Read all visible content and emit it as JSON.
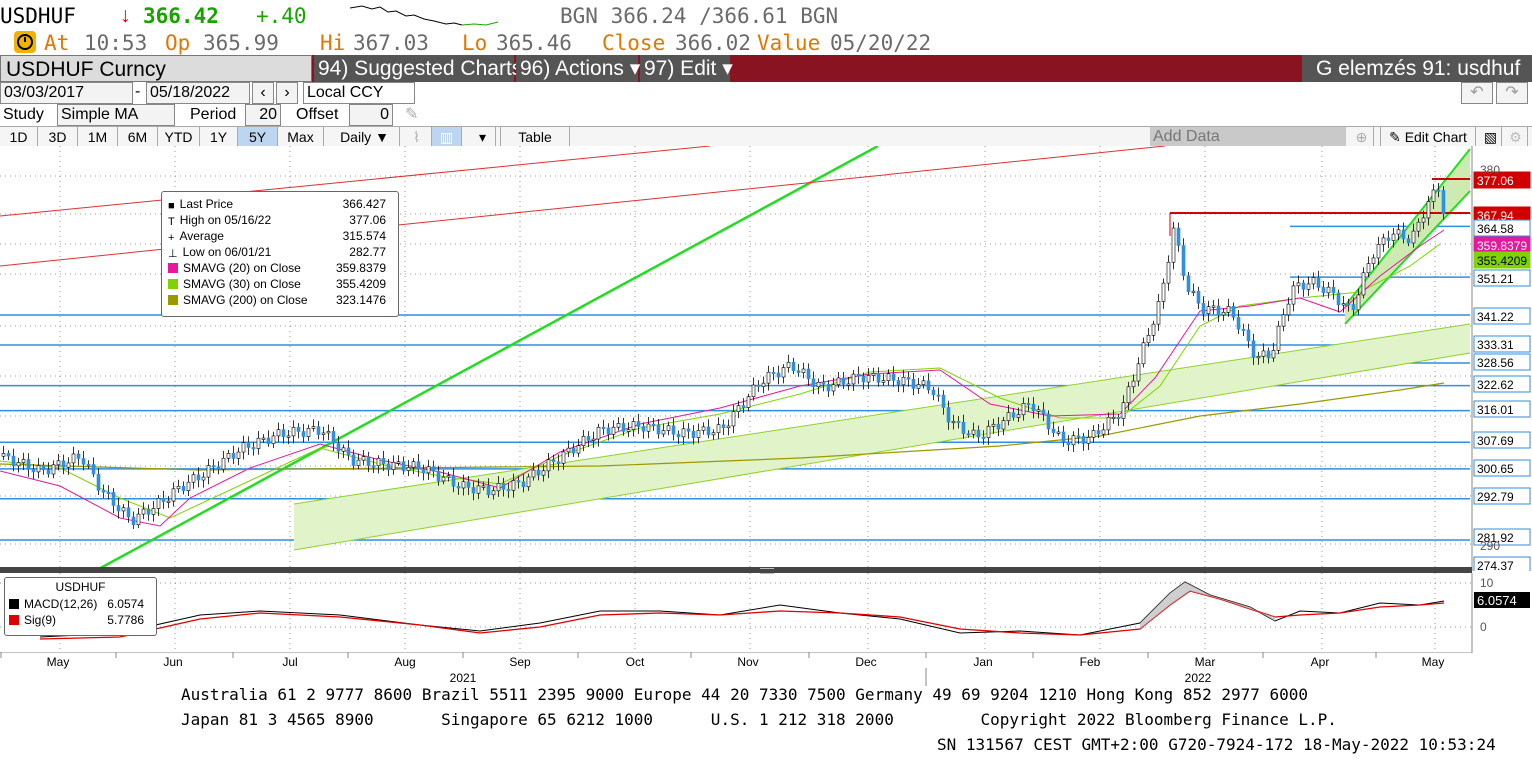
{
  "header": {
    "ticker": "USDHUF",
    "arrow": "↓",
    "last": "366.42",
    "change": "+.40",
    "bgn": "BGN 366.24 /366.61 BGN",
    "at_label": "At",
    "at": "10:53",
    "op_label": "Op",
    "op": "365.99",
    "hi_label": "Hi",
    "hi": "367.03",
    "lo_label": "Lo",
    "lo": "365.46",
    "close_label": "Close",
    "close": "366.02",
    "value_label": "Value",
    "value": "05/20/22"
  },
  "menubar": {
    "security": "USDHUF Curncy",
    "suggested": "94) Suggested Charts",
    "actions": "96) Actions ▾",
    "edit": "97) Edit ▾",
    "title": "G elemzés 91: usdhuf"
  },
  "controls": {
    "date_from": "03/03/2017",
    "date_sep": "-",
    "date_to": "05/18/2022",
    "currency": "Local CCY",
    "study_label": "Study",
    "study": "Simple MA",
    "period_label": "Period",
    "period": "20",
    "offset_label": "Offset",
    "offset": "0",
    "ranges": [
      "1D",
      "3D",
      "1M",
      "6M",
      "YTD",
      "1Y",
      "5Y",
      "Max"
    ],
    "active_range": "5Y",
    "frequency": "Daily ▼",
    "table": "Table",
    "add_data_placeholder": "Add Data",
    "edit_chart": "Edit Chart"
  },
  "legend": {
    "rows": [
      {
        "label": "Last Price",
        "value": "366.427",
        "marker": "■"
      },
      {
        "label": "High on 05/16/22",
        "value": "377.06",
        "marker": "T"
      },
      {
        "label": "Average",
        "value": "315.574",
        "marker": "+"
      },
      {
        "label": "Low on 06/01/21",
        "value": "282.77",
        "marker": "⊥"
      },
      {
        "label": "SMAVG (20)  on Close",
        "value": "359.8379",
        "color": "#e6199b"
      },
      {
        "label": "SMAVG (30)  on Close",
        "value": "355.4209",
        "color": "#7fd400"
      },
      {
        "label": "SMAVG (200)  on Close",
        "value": "323.1476",
        "color": "#9a9a00"
      }
    ]
  },
  "macd_legend": {
    "title": "USDHUF",
    "rows": [
      {
        "label": "MACD(12,26)",
        "value": "6.0574",
        "color": "#000000"
      },
      {
        "label": "Sig(9)",
        "value": "5.7786",
        "color": "#e00000"
      }
    ]
  },
  "price_tags": [
    "377.06",
    "367.94",
    "364.58",
    "359.8379",
    "355.4209",
    "351.21",
    "341.22",
    "333.31",
    "328.56",
    "322.62",
    "316.01",
    "307.69",
    "300.65",
    "292.79",
    "281.92",
    "274.37"
  ],
  "axis_ticks": [
    "380",
    "290"
  ],
  "macd_axis": [
    "10",
    "0"
  ],
  "macd_tag": "6.0574",
  "months": [
    "May",
    "Jun",
    "Jul",
    "Aug",
    "Sep",
    "Oct",
    "Nov",
    "Dec",
    "Jan",
    "Feb",
    "Mar",
    "Apr",
    "May"
  ],
  "years": [
    "2021",
    "2022"
  ],
  "footer": {
    "line1": "Australia 61 2 9777 8600 Brazil 5511 2395 9000 Europe 44 20 7330 7500 Germany 49 69 9204 1210 Hong Kong 852 2977 6000",
    "line2": "Japan 81 3 4565 8900       Singapore 65 6212 1000      U.S. 1 212 318 2000         Copyright 2022 Bloomberg Finance L.P.",
    "line3": "SN 131567 CEST GMT+2:00 G720-7924-172 18-May-2022 10:53:24"
  },
  "colors": {
    "menubar_bg": "#8a1322",
    "accent": "#e07800",
    "hline": "#2f8fe0",
    "trend_green": "#22dd22",
    "channel_fill": "#dff2c2",
    "resistance": "#d00000",
    "sma20": "#e6199b",
    "sma30": "#7fd400",
    "sma200": "#9a9a00"
  }
}
